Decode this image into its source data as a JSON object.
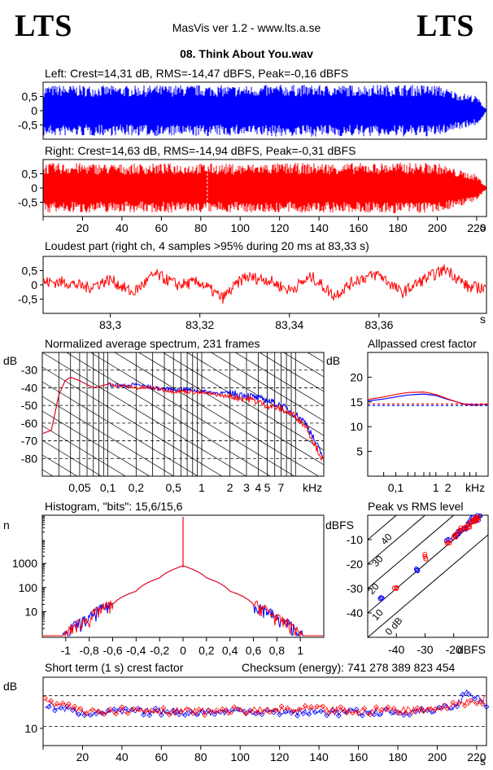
{
  "header": {
    "logo_left": "LTS",
    "logo_right": "LTS",
    "app_title": "MasVis ver 1.2 - www.lts.a.se",
    "track_title": "08. Think About You.wav"
  },
  "colors": {
    "left": "#0000ff",
    "right": "#ff0000",
    "grid": "#000000"
  },
  "panels": {
    "left_wave": {
      "title": "Left: Crest=14,31 dB, RMS=-14,47 dBFS, Peak=-0,16 dBFS",
      "y_ticks": [
        "0,5",
        "0",
        "-0,5"
      ]
    },
    "right_wave": {
      "title": "Right: Crest=14,63 dB, RMS=-14,94 dBFS, Peak=-0,31 dBFS",
      "y_ticks": [
        "0,5",
        "0",
        "-0,5"
      ],
      "marker_time_s": 83.33
    },
    "time_axis": {
      "ticks": [
        "20",
        "40",
        "60",
        "80",
        "100",
        "120",
        "140",
        "160",
        "180",
        "200",
        "220"
      ],
      "unit": "s"
    },
    "loudest": {
      "title": "Loudest part (right ch, 4 samples >95% during 20 ms at 83,33 s)",
      "y_ticks": [
        "0,5",
        "0",
        "-0,5"
      ],
      "x_ticks": [
        "83,3",
        "83,32",
        "83,34",
        "83,36"
      ],
      "unit": "s"
    },
    "spectrum": {
      "title": "Normalized average spectrum, 231 frames",
      "y_unit": "dB",
      "y_ticks": [
        "-30",
        "-40",
        "-50",
        "-60",
        "-70",
        "-80"
      ],
      "x_ticks": [
        "0,05",
        "0,1",
        "0,2",
        "0,5",
        "1",
        "2",
        "3",
        "4",
        "5",
        "7"
      ],
      "x_unit": "kHz"
    },
    "crest_ap": {
      "title": "Allpassed crest factor",
      "y_unit": "dB",
      "y_ticks": [
        "20",
        "15",
        "10",
        "5"
      ],
      "x_ticks": [
        "0,1",
        "1",
        "2"
      ],
      "x_unit": "kHz"
    },
    "histogram": {
      "title": "Histogram, \"bits\": 15,6/15,6",
      "y_unit": "n",
      "y_ticks": [
        "1000",
        "100",
        "10"
      ],
      "x_ticks": [
        "-1",
        "-0,8",
        "-0,6",
        "-0,4",
        "-0,2",
        "0",
        "0,2",
        "0,4",
        "0,6",
        "0,8",
        "1"
      ]
    },
    "pvr": {
      "title": "Peak vs RMS level",
      "y_unit": "dBFS",
      "y_ticks": [
        "-10",
        "-20",
        "-30",
        "-40"
      ],
      "x_ticks": [
        "-40",
        "-30",
        "-20"
      ],
      "x_unit": "dBFS",
      "diag_labels": [
        "40",
        "30",
        "20",
        "10",
        "0 dB"
      ]
    },
    "short_crest": {
      "title": "Short term (1 s) crest factor",
      "checksum": "Checksum (energy):   741 278 389 823 454",
      "y_unit": "dB",
      "y_ticks": [
        "10"
      ]
    }
  },
  "chart_data": [
    {
      "type": "area",
      "title": "Left: Crest=14,31 dB, RMS=-14,47 dBFS, Peak=-0,16 dBFS",
      "xlabel": "s",
      "ylim": [
        -1,
        1
      ],
      "x": [
        0,
        20,
        40,
        60,
        80,
        100,
        120,
        140,
        160,
        180,
        200,
        210,
        220,
        225
      ],
      "series": [
        {
          "name": "",
          "values": [
            0.95,
            0.95,
            0.93,
            0.95,
            0.96,
            0.93,
            0.97,
            0.96,
            0.96,
            0.98,
            0.96,
            0.7,
            0.55,
            0.05
          ]
        }
      ]
    },
    {
      "type": "area",
      "title": "Right: Crest=14,63 dB, RMS=-14,94 dBFS, Peak=-0,31 dBFS",
      "xlabel": "s",
      "ylim": [
        -1,
        1
      ],
      "x": [
        0,
        20,
        40,
        60,
        80,
        100,
        120,
        140,
        160,
        180,
        200,
        210,
        220,
        225
      ],
      "series": [
        {
          "name": "",
          "values": [
            0.93,
            0.93,
            0.9,
            0.92,
            0.92,
            0.9,
            0.93,
            0.93,
            0.93,
            0.95,
            0.94,
            0.7,
            0.5,
            0.05
          ]
        }
      ]
    },
    {
      "type": "line",
      "title": "Loudest part (right ch, 4 samples >95% during 20 ms at 83,33 s)",
      "xlabel": "s",
      "xlim": [
        83.285,
        83.384
      ],
      "ylim": [
        -1,
        1
      ],
      "x": [
        83.29,
        83.295,
        83.3,
        83.305,
        83.31,
        83.315,
        83.32,
        83.325,
        83.33,
        83.335,
        83.34,
        83.345,
        83.35,
        83.355,
        83.36,
        83.365,
        83.37,
        83.375,
        83.38
      ],
      "series": [
        {
          "name": "right",
          "values": [
            0.1,
            -0.1,
            0.2,
            -0.3,
            0.4,
            0.0,
            0.1,
            -0.5,
            0.3,
            0.2,
            -0.2,
            0.3,
            -0.4,
            0.2,
            0.4,
            -0.3,
            0.2,
            0.6,
            -0.1
          ]
        }
      ]
    },
    {
      "type": "line",
      "title": "Normalized average spectrum, 231 frames",
      "xlabel": "kHz",
      "ylabel": "dB",
      "xscale": "log",
      "ylim": [
        -90,
        -20
      ],
      "x": [
        0.02,
        0.025,
        0.03,
        0.035,
        0.04,
        0.05,
        0.07,
        0.1,
        0.15,
        0.2,
        0.3,
        0.5,
        0.7,
        1,
        1.5,
        2,
        3,
        4,
        5,
        7,
        10,
        13,
        16,
        20
      ],
      "series": [
        {
          "name": "left",
          "values": [
            -66,
            -64,
            -44,
            -36,
            -34,
            -36,
            -40,
            -38,
            -39,
            -38,
            -40,
            -41,
            -41,
            -42,
            -43,
            -43,
            -44,
            -46,
            -47,
            -50,
            -55,
            -60,
            -70,
            -80
          ]
        },
        {
          "name": "right",
          "values": [
            -66,
            -64,
            -44,
            -36,
            -34,
            -36,
            -40,
            -38,
            -39,
            -40,
            -40,
            -42,
            -42,
            -43,
            -44,
            -45,
            -46,
            -48,
            -50,
            -52,
            -56,
            -62,
            -72,
            -82
          ]
        }
      ]
    },
    {
      "type": "line",
      "title": "Allpassed crest factor",
      "xlabel": "kHz",
      "ylabel": "dB",
      "xscale": "log",
      "ylim": [
        0,
        25
      ],
      "x": [
        0.02,
        0.05,
        0.1,
        0.2,
        0.5,
        1,
        2,
        5,
        10,
        20
      ],
      "series": [
        {
          "name": "left",
          "values": [
            15.2,
            15.6,
            16.0,
            16.4,
            16.6,
            16.3,
            15.5,
            14.6,
            14.4,
            14.5
          ]
        },
        {
          "name": "right",
          "values": [
            15.5,
            16.0,
            16.5,
            16.9,
            17.0,
            16.5,
            15.6,
            14.5,
            14.3,
            14.6
          ]
        },
        {
          "name": "left-ref",
          "values": [
            14.3,
            14.3,
            14.3,
            14.3,
            14.3,
            14.3,
            14.3,
            14.3,
            14.3,
            14.3
          ]
        },
        {
          "name": "right-ref",
          "values": [
            14.6,
            14.6,
            14.6,
            14.6,
            14.6,
            14.6,
            14.6,
            14.6,
            14.6,
            14.6
          ]
        }
      ]
    },
    {
      "type": "line",
      "title": "Histogram, \"bits\": 15,6/15,6",
      "ylabel": "n",
      "yscale": "log",
      "xlim": [
        -1.2,
        1.2
      ],
      "ylim": [
        1,
        100000
      ],
      "x": [
        -1.0,
        -0.8,
        -0.6,
        -0.4,
        -0.2,
        -0.05,
        0,
        0.05,
        0.2,
        0.4,
        0.6,
        0.8,
        1.0
      ],
      "series": [
        {
          "name": "left",
          "values": [
            1,
            5,
            20,
            70,
            250,
            650,
            800,
            650,
            250,
            70,
            20,
            5,
            1
          ]
        },
        {
          "name": "right",
          "values": [
            1,
            5,
            20,
            70,
            250,
            650,
            800,
            650,
            250,
            70,
            20,
            5,
            1
          ]
        }
      ]
    },
    {
      "type": "scatter",
      "title": "Peak vs RMS level",
      "xlabel": "dBFS",
      "ylabel": "dBFS",
      "xlim": [
        -50,
        -8
      ],
      "ylim": [
        -50,
        0
      ],
      "series": [
        {
          "name": "left",
          "x": [
            -45,
            -33,
            -22,
            -19,
            -18,
            -17,
            -16,
            -15,
            -14,
            -13,
            -12.5,
            -12,
            -11.5
          ],
          "y": [
            -34,
            -22,
            -10,
            -8,
            -7,
            -6,
            -5,
            -4,
            -3,
            -2,
            -1.5,
            -1,
            -0.8
          ]
        },
        {
          "name": "right",
          "x": [
            -40,
            -30,
            -22,
            -20,
            -18.5,
            -17,
            -16,
            -15,
            -14,
            -13,
            -12.5,
            -12,
            -11.5
          ],
          "y": [
            -30,
            -17,
            -11,
            -9,
            -7,
            -6,
            -5,
            -4,
            -3,
            -2.5,
            -2,
            -1.5,
            -1
          ]
        }
      ]
    },
    {
      "type": "scatter",
      "title": "Short term (1 s) crest factor",
      "xlabel": "s",
      "ylabel": "dB",
      "ylim": [
        7,
        17
      ],
      "x": [
        0,
        20,
        40,
        60,
        80,
        100,
        120,
        140,
        160,
        180,
        200,
        210,
        215,
        220,
        225
      ],
      "series": [
        {
          "name": "left",
          "values": [
            13,
            11.8,
            11.9,
            12.0,
            11.8,
            12.0,
            11.9,
            11.9,
            11.8,
            11.9,
            12.2,
            12.8,
            15.0,
            14.0,
            13.0
          ]
        },
        {
          "name": "right",
          "values": [
            13.5,
            12.0,
            12.2,
            12.1,
            12.0,
            12.1,
            12.2,
            12.3,
            12.0,
            12.2,
            12.5,
            13.0,
            13.5,
            13.0,
            14.0
          ]
        }
      ]
    }
  ]
}
